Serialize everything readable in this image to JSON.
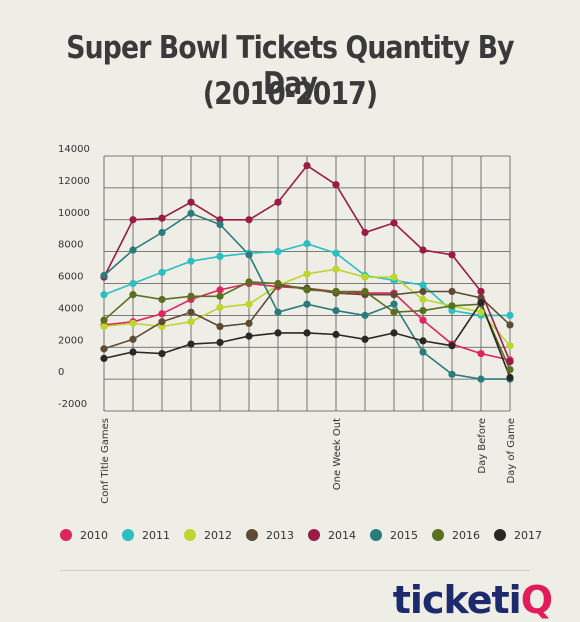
{
  "title_line1": "Super Bowl Tickets Quantity By Day",
  "title_line2": "(2010-2017)",
  "logo": {
    "main": "ticketi",
    "accent": "Q"
  },
  "chart_data": {
    "type": "line",
    "title": "Super Bowl Tickets Quantity By Day (2010-2017)",
    "xlabel": "",
    "ylabel": "",
    "ylim": [
      -2000,
      14000
    ],
    "yticks": [
      14000,
      12000,
      10000,
      8000,
      6000,
      4000,
      2000,
      0,
      -2000
    ],
    "x_count": 15,
    "x_labels": [
      {
        "index": 0,
        "label": "Conf Title Games"
      },
      {
        "index": 8,
        "label": "One Week Out"
      },
      {
        "index": 13,
        "label": "Day Before"
      },
      {
        "index": 14,
        "label": "Day of Game"
      }
    ],
    "grid": true,
    "legend_position": "bottom",
    "series": [
      {
        "name": "2010",
        "color": "#e0245e",
        "values": [
          3400,
          3600,
          4100,
          5000,
          5600,
          6000,
          5800,
          5700,
          5500,
          5400,
          5400,
          3700,
          2200,
          1600,
          1200
        ]
      },
      {
        "name": "2011",
        "color": "#2bbfc2",
        "values": [
          5300,
          6000,
          6700,
          7400,
          7700,
          7900,
          8000,
          8500,
          7900,
          6500,
          6200,
          5900,
          4300,
          4000,
          4000
        ]
      },
      {
        "name": "2012",
        "color": "#bcd630",
        "values": [
          3300,
          3500,
          3300,
          3600,
          4500,
          4700,
          5900,
          6600,
          6900,
          6400,
          6400,
          5000,
          4600,
          4200,
          2100
        ]
      },
      {
        "name": "2013",
        "color": "#5e4b35",
        "values": [
          1900,
          2500,
          3600,
          4200,
          3300,
          3500,
          5900,
          5700,
          5400,
          5300,
          5300,
          5500,
          5500,
          5100,
          3400
        ]
      },
      {
        "name": "2014",
        "color": "#9b1b47",
        "values": [
          6400,
          10000,
          10100,
          11100,
          10000,
          10000,
          11100,
          13400,
          12200,
          9200,
          9800,
          8100,
          7800,
          5500,
          1100
        ]
      },
      {
        "name": "2015",
        "color": "#2a7b7b",
        "values": [
          6500,
          8100,
          9200,
          10400,
          9700,
          7800,
          4200,
          4700,
          4300,
          4000,
          4700,
          1700,
          300,
          0,
          0
        ]
      },
      {
        "name": "2016",
        "color": "#5a7020",
        "values": [
          3700,
          5300,
          5000,
          5200,
          5200,
          6100,
          6000,
          5600,
          5500,
          5500,
          4200,
          4300,
          4600,
          4700,
          600
        ]
      },
      {
        "name": "2017",
        "color": "#2b2722",
        "values": [
          1300,
          1700,
          1600,
          2200,
          2300,
          2700,
          2900,
          2900,
          2800,
          2500,
          2900,
          2400,
          2100,
          4800,
          100
        ]
      }
    ]
  }
}
